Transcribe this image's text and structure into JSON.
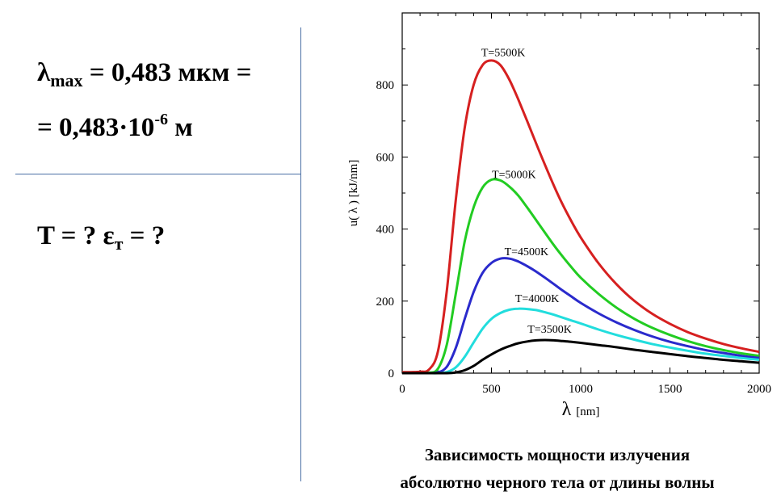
{
  "given": {
    "line1": {
      "sym": "λ",
      "sub": "max",
      "rest": " = 0,483 мкм ="
    },
    "line2": {
      "pre": "= 0,483·10",
      "exp": "-6",
      "post": " м"
    },
    "line3": {
      "pre": "T = ?  ε",
      "sub": "т",
      "post": " = ?"
    }
  },
  "caption": {
    "line1": "Зависимость мощности излучения",
    "line2": "абсолютно черного тела от длины волны"
  },
  "chart_data": {
    "type": "line",
    "xlabel_sym": "λ",
    "xlabel_unit": "[nm]",
    "ylabel": "u( λ )  [kJ/nm]",
    "xlim": [
      0,
      2000
    ],
    "ylim": [
      0,
      1000
    ],
    "xticks": [
      0,
      500,
      1000,
      1500,
      2000
    ],
    "yticks": [
      0,
      200,
      400,
      600,
      800
    ],
    "grid": false,
    "x": [
      0,
      50,
      100,
      150,
      200,
      250,
      300,
      350,
      400,
      450,
      500,
      550,
      600,
      650,
      700,
      750,
      800,
      850,
      900,
      950,
      1000,
      1100,
      1200,
      1300,
      1400,
      1500,
      1600,
      1700,
      1800,
      1900,
      2000
    ],
    "series": [
      {
        "name": "T=5500K",
        "color": "#d62020",
        "peak_label_at": 530,
        "values": [
          3,
          3,
          4,
          10,
          60,
          230,
          480,
          680,
          800,
          855,
          868,
          855,
          815,
          760,
          700,
          638,
          578,
          520,
          467,
          420,
          377,
          305,
          247,
          201,
          165,
          137,
          114,
          96,
          81,
          69,
          59
        ]
      },
      {
        "name": "T=5000K",
        "color": "#22cc22",
        "peak_label_at": 590,
        "values": [
          0,
          0,
          0,
          1,
          12,
          80,
          220,
          365,
          460,
          515,
          537,
          535,
          518,
          493,
          460,
          425,
          390,
          355,
          323,
          293,
          265,
          220,
          182,
          151,
          126,
          106,
          89,
          75,
          64,
          55,
          48
        ]
      },
      {
        "name": "T=4500K",
        "color": "#2a2acc",
        "peak_label_at": 660,
        "values": [
          0,
          0,
          0,
          0,
          2,
          18,
          70,
          150,
          225,
          278,
          306,
          318,
          318,
          310,
          297,
          282,
          265,
          247,
          229,
          212,
          195,
          166,
          141,
          120,
          102,
          87,
          75,
          64,
          56,
          48,
          42
        ]
      },
      {
        "name": "T=4000K",
        "color": "#22dddd",
        "peak_label_at": 720,
        "values": [
          0,
          0,
          0,
          0,
          0,
          3,
          16,
          45,
          85,
          123,
          151,
          167,
          176,
          179,
          178,
          175,
          169,
          162,
          154,
          146,
          138,
          121,
          106,
          93,
          81,
          71,
          62,
          54,
          48,
          42,
          37
        ]
      },
      {
        "name": "T=3500K",
        "color": "#000000",
        "peak_label_at": 790,
        "values": [
          0,
          0,
          0,
          0,
          0,
          0,
          2,
          8,
          20,
          37,
          52,
          65,
          75,
          83,
          88,
          91,
          92,
          91,
          89,
          87,
          84,
          78,
          72,
          65,
          59,
          53,
          47,
          42,
          37,
          33,
          29
        ]
      }
    ]
  }
}
